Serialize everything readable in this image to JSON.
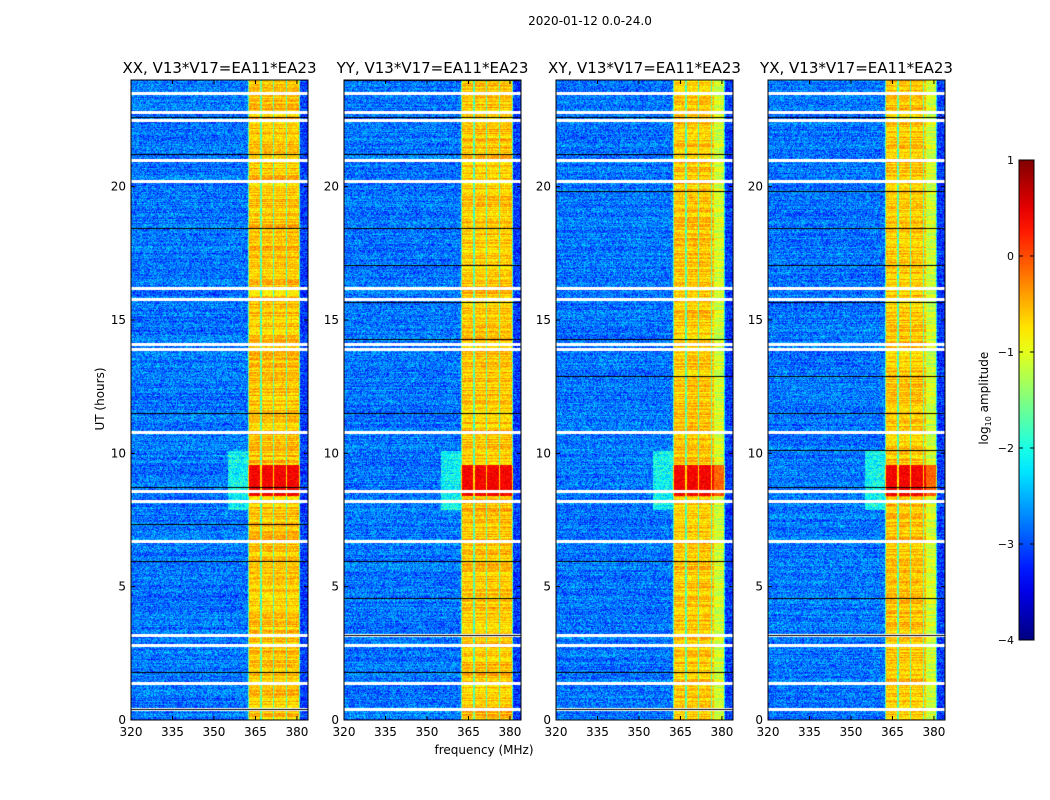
{
  "chart_data": {
    "type": "heatmap",
    "title": "2020-01-12 0.0-24.0",
    "xlabel": "frequency (MHz)",
    "ylabel": "UT (hours)",
    "xlim": [
      320,
      384
    ],
    "ylim": [
      0,
      24
    ],
    "xticks": [
      320,
      335,
      350,
      365,
      380
    ],
    "yticks": [
      0,
      5,
      10,
      15,
      20
    ],
    "panels": [
      {
        "title": "XX, V13*V17=EA11*EA23"
      },
      {
        "title": "YY, V13*V17=EA11*EA23"
      },
      {
        "title": "XY, V13*V17=EA11*EA23"
      },
      {
        "title": "YX, V13*V17=EA11*EA23"
      }
    ],
    "colorbar": {
      "label_prefix": "log",
      "label_sub": "10",
      "label_suffix": " amplitude",
      "range": [
        -4,
        1
      ],
      "ticks": [
        "1",
        "0",
        "−1",
        "−2",
        "−3",
        "−4"
      ],
      "colormap": "jet"
    },
    "signal_band_MHz": [
      362,
      381
    ],
    "background_log_amp": -2.8,
    "band_log_amp": -0.6,
    "peak_hours": [
      8.4,
      9.6
    ],
    "peak_log_amp": 0.4,
    "flagged_gap_hours": [
      0.4,
      1.4,
      2.8,
      3.2,
      6.7,
      8.2,
      8.6,
      10.8,
      13.9,
      14.1,
      15.8,
      16.2,
      20.2,
      21.0,
      22.5,
      22.8,
      23.5
    ]
  }
}
